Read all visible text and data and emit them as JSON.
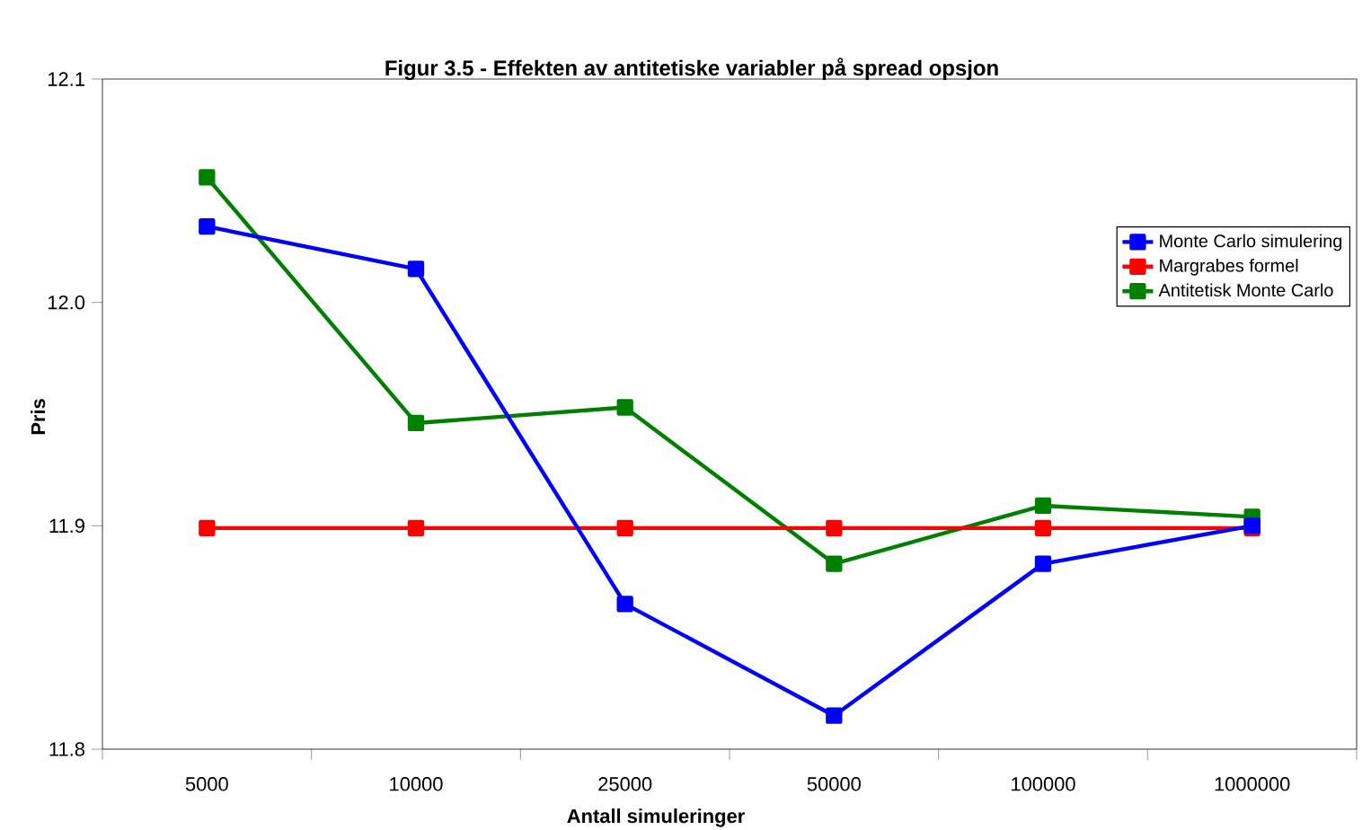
{
  "chart_data": {
    "type": "line",
    "title": "Figur 3.5 - Effekten av antitetiske variabler på spread opsjon",
    "xlabel": "Antall simuleringer",
    "ylabel": "Pris",
    "categories": [
      "5000",
      "10000",
      "25000",
      "50000",
      "100000",
      "1000000"
    ],
    "series": [
      {
        "name": "Monte Carlo simulering",
        "color": "#0000ff",
        "values": [
          12.034,
          12.015,
          11.865,
          11.815,
          11.883,
          11.9
        ]
      },
      {
        "name": "Margrabes formel",
        "color": "#ff0000",
        "values": [
          11.899,
          11.899,
          11.899,
          11.899,
          11.899,
          11.899
        ]
      },
      {
        "name": "Antitetisk Monte Carlo",
        "color": "#008000",
        "values": [
          12.056,
          11.946,
          11.953,
          11.883,
          11.909,
          11.904
        ]
      }
    ],
    "ylim": [
      11.8,
      12.1
    ],
    "yticks": [
      {
        "value": 11.8,
        "label": "11.8"
      },
      {
        "value": 11.9,
        "label": "11.9"
      },
      {
        "value": 12.0,
        "label": "12.0"
      },
      {
        "value": 12.1,
        "label": "12.1"
      }
    ],
    "legend": "right",
    "marker": "square",
    "line_style": "solid",
    "grid": false
  }
}
